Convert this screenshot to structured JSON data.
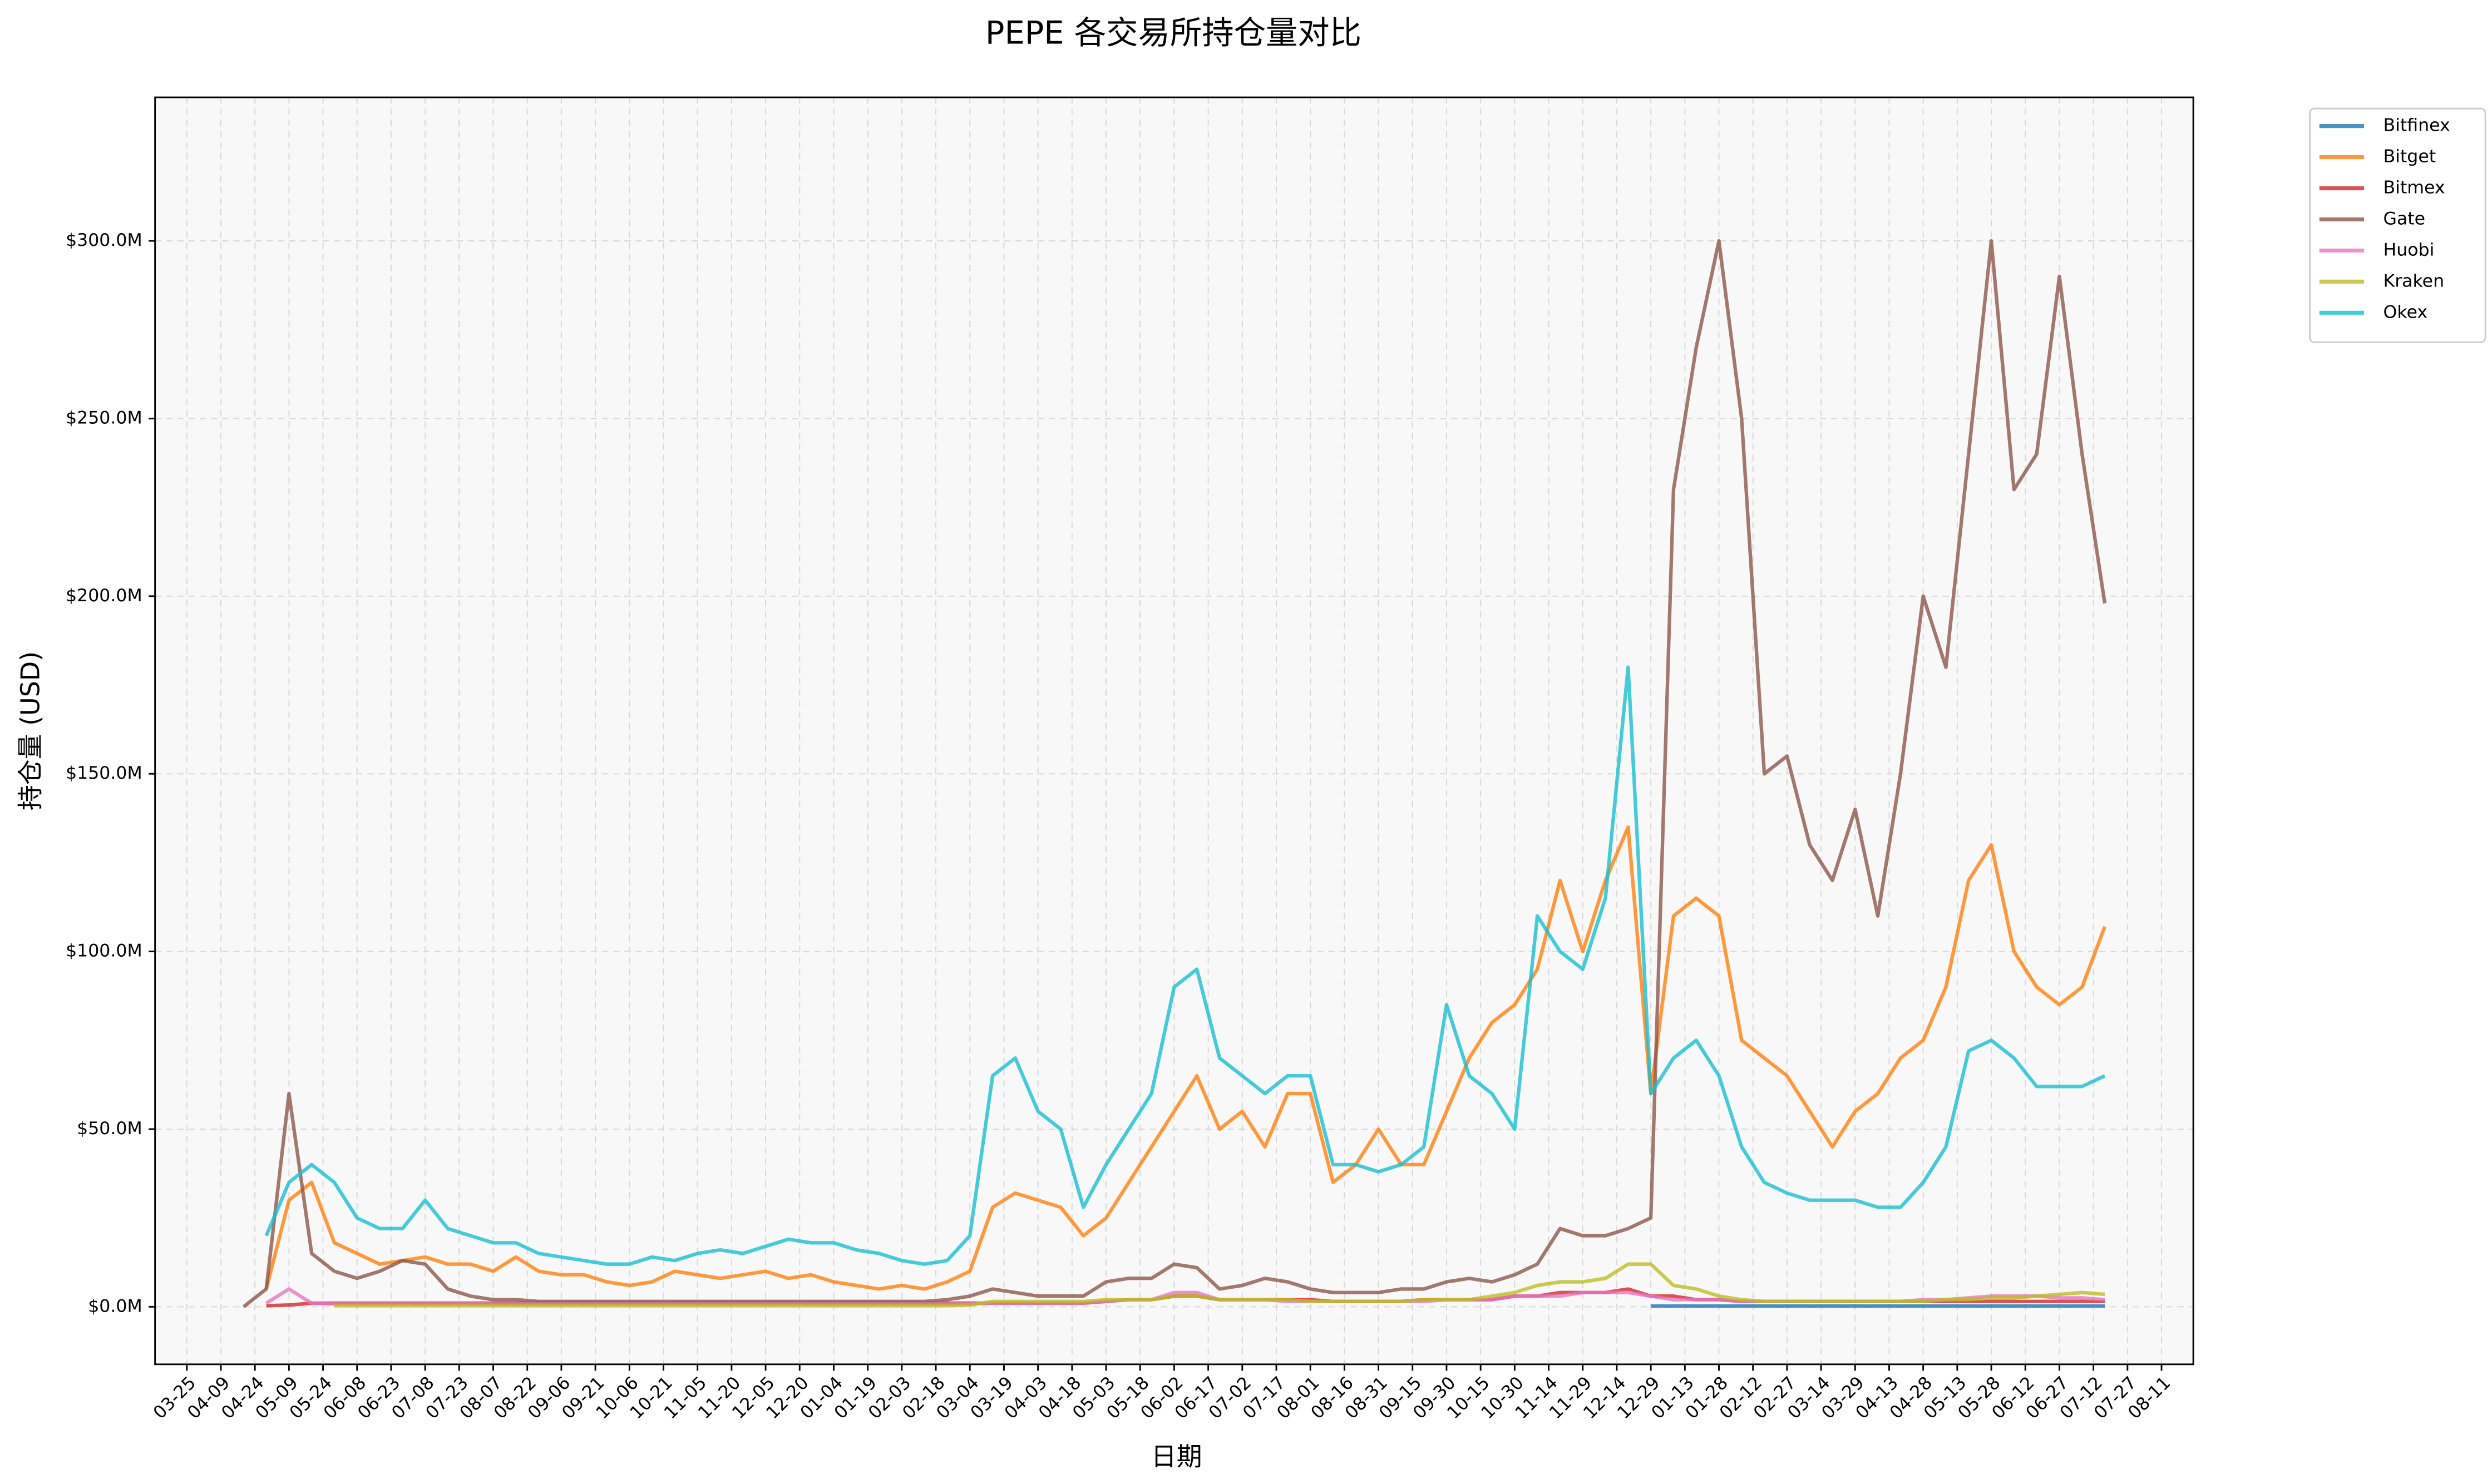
{
  "chart_data": {
    "type": "line",
    "title": "PEPE 各交易所持仓量对比",
    "xlabel": "日期",
    "ylabel": "持仓量 (USD)",
    "grid": true,
    "legend": "outside upper right",
    "x": [
      25,
      35,
      45,
      55,
      65,
      75,
      85,
      95,
      105,
      115,
      125,
      135,
      145,
      155,
      165,
      175,
      185,
      195,
      205,
      215,
      225,
      235,
      245,
      255,
      265,
      275,
      285,
      295,
      305,
      315,
      325,
      335,
      345,
      355,
      365,
      375,
      385,
      395,
      405,
      415,
      425,
      435,
      445,
      455,
      465,
      475,
      485,
      495,
      505,
      515,
      525,
      535,
      545,
      555,
      565,
      575,
      585,
      595,
      605,
      615,
      625,
      635,
      645,
      655,
      665,
      675,
      685,
      695,
      705,
      715,
      725,
      735,
      745,
      755,
      765,
      775,
      785,
      795,
      805,
      815,
      825,
      835,
      845
    ],
    "xlim": [
      -14,
      884
    ],
    "xticks": [
      {
        "value": 0,
        "label": "03-25"
      },
      {
        "value": 15,
        "label": "04-09"
      },
      {
        "value": 30,
        "label": "04-24"
      },
      {
        "value": 45,
        "label": "05-09"
      },
      {
        "value": 60,
        "label": "05-24"
      },
      {
        "value": 75,
        "label": "06-08"
      },
      {
        "value": 90,
        "label": "06-23"
      },
      {
        "value": 105,
        "label": "07-08"
      },
      {
        "value": 120,
        "label": "07-23"
      },
      {
        "value": 135,
        "label": "08-07"
      },
      {
        "value": 150,
        "label": "08-22"
      },
      {
        "value": 165,
        "label": "09-06"
      },
      {
        "value": 180,
        "label": "09-21"
      },
      {
        "value": 195,
        "label": "10-06"
      },
      {
        "value": 210,
        "label": "10-21"
      },
      {
        "value": 225,
        "label": "11-05"
      },
      {
        "value": 240,
        "label": "11-20"
      },
      {
        "value": 255,
        "label": "12-05"
      },
      {
        "value": 270,
        "label": "12-20"
      },
      {
        "value": 285,
        "label": "01-04"
      },
      {
        "value": 300,
        "label": "01-19"
      },
      {
        "value": 315,
        "label": "02-03"
      },
      {
        "value": 330,
        "label": "02-18"
      },
      {
        "value": 345,
        "label": "03-04"
      },
      {
        "value": 360,
        "label": "03-19"
      },
      {
        "value": 375,
        "label": "04-03"
      },
      {
        "value": 390,
        "label": "04-18"
      },
      {
        "value": 405,
        "label": "05-03"
      },
      {
        "value": 420,
        "label": "05-18"
      },
      {
        "value": 435,
        "label": "06-02"
      },
      {
        "value": 450,
        "label": "06-17"
      },
      {
        "value": 465,
        "label": "07-02"
      },
      {
        "value": 480,
        "label": "07-17"
      },
      {
        "value": 495,
        "label": "08-01"
      },
      {
        "value": 510,
        "label": "08-16"
      },
      {
        "value": 525,
        "label": "08-31"
      },
      {
        "value": 540,
        "label": "09-15"
      },
      {
        "value": 555,
        "label": "09-30"
      },
      {
        "value": 570,
        "label": "10-15"
      },
      {
        "value": 585,
        "label": "10-30"
      },
      {
        "value": 600,
        "label": "11-14"
      },
      {
        "value": 615,
        "label": "11-29"
      },
      {
        "value": 630,
        "label": "12-14"
      },
      {
        "value": 645,
        "label": "12-29"
      },
      {
        "value": 660,
        "label": "01-13"
      },
      {
        "value": 675,
        "label": "01-28"
      },
      {
        "value": 690,
        "label": "02-12"
      },
      {
        "value": 705,
        "label": "02-27"
      },
      {
        "value": 720,
        "label": "03-14"
      },
      {
        "value": 735,
        "label": "03-29"
      },
      {
        "value": 750,
        "label": "04-13"
      },
      {
        "value": 765,
        "label": "04-28"
      },
      {
        "value": 780,
        "label": "05-13"
      },
      {
        "value": 795,
        "label": "05-28"
      },
      {
        "value": 810,
        "label": "06-12"
      },
      {
        "value": 825,
        "label": "06-27"
      },
      {
        "value": 840,
        "label": "07-12"
      },
      {
        "value": 855,
        "label": "07-27"
      },
      {
        "value": 870,
        "label": "08-11"
      }
    ],
    "ylim": [
      -16.2,
      340.4
    ],
    "yticks": [
      {
        "value": 0,
        "label": "$0.0M"
      },
      {
        "value": 50,
        "label": "$50.0M"
      },
      {
        "value": 100,
        "label": "$100.0M"
      },
      {
        "value": 150,
        "label": "$150.0M"
      },
      {
        "value": 200,
        "label": "$200.0M"
      },
      {
        "value": 250,
        "label": "$250.0M"
      },
      {
        "value": 300,
        "label": "$300.0M"
      }
    ],
    "series": [
      {
        "name": "Bitfinex",
        "color": "#1f77b4",
        "values": [
          null,
          null,
          null,
          null,
          null,
          null,
          null,
          null,
          null,
          null,
          null,
          null,
          null,
          null,
          null,
          null,
          null,
          null,
          null,
          null,
          null,
          null,
          null,
          null,
          null,
          null,
          null,
          null,
          null,
          null,
          null,
          null,
          null,
          null,
          null,
          null,
          null,
          null,
          null,
          null,
          null,
          null,
          null,
          null,
          null,
          null,
          null,
          null,
          null,
          null,
          null,
          null,
          null,
          null,
          null,
          null,
          null,
          null,
          null,
          null,
          null,
          null,
          0.2,
          0.2,
          0.2,
          0.2,
          0.2,
          0.2,
          0.2,
          0.2,
          0.2,
          0.2,
          0.2,
          0.2,
          0.2,
          0.2,
          0.2,
          0.2,
          0.2,
          0.2,
          0.2,
          0.2,
          0.2
        ]
      },
      {
        "name": "Bitget",
        "color": "#ff7f0e",
        "values": [
          null,
          5,
          30,
          35,
          18,
          15,
          12,
          13,
          14,
          12,
          12,
          10,
          14,
          10,
          9,
          9,
          7,
          6,
          7,
          10,
          9,
          8,
          9,
          10,
          8,
          9,
          7,
          6,
          5,
          6,
          5,
          7,
          10,
          28,
          32,
          30,
          28,
          20,
          25,
          35,
          45,
          55,
          65,
          50,
          55,
          45,
          60,
          60,
          35,
          40,
          50,
          40,
          40,
          55,
          70,
          80,
          85,
          95,
          120,
          100,
          120,
          135,
          60,
          110,
          115,
          110,
          75,
          70,
          65,
          55,
          45,
          55,
          60,
          70,
          75,
          90,
          120,
          130,
          100,
          90,
          85,
          90,
          107
        ]
      },
      {
        "name": "Bitmex",
        "color": "#d62728",
        "values": [
          null,
          0.3,
          0.5,
          1,
          1,
          1,
          1,
          1,
          1,
          1,
          1,
          1,
          1,
          1,
          1,
          1,
          1,
          1,
          1,
          1,
          1,
          1,
          1,
          1,
          1,
          1,
          1,
          1,
          1,
          1,
          1,
          1,
          1,
          1,
          1,
          1,
          1,
          1,
          1.5,
          2,
          2,
          3,
          3,
          2,
          2,
          2,
          2,
          2,
          1.5,
          1.5,
          1.5,
          1.5,
          2,
          2,
          2,
          2,
          3,
          3,
          4,
          4,
          4,
          5,
          3,
          3,
          2,
          2,
          1.5,
          1.5,
          1.5,
          1.5,
          1.5,
          1.5,
          1.5,
          1.5,
          1.5,
          1.5,
          1.5,
          1.5,
          1.5,
          1.5,
          1.5,
          1.5,
          1.5
        ]
      },
      {
        "name": "Gate",
        "color": "#8c564b",
        "values": [
          0,
          5,
          60,
          15,
          10,
          8,
          10,
          13,
          12,
          5,
          3,
          2,
          2,
          1.5,
          1.5,
          1.5,
          1.5,
          1.5,
          1.5,
          1.5,
          1.5,
          1.5,
          1.5,
          1.5,
          1.5,
          1.5,
          1.5,
          1.5,
          1.5,
          1.5,
          1.5,
          2,
          3,
          5,
          4,
          3,
          3,
          3,
          7,
          8,
          8,
          12,
          11,
          5,
          6,
          8,
          7,
          5,
          4,
          4,
          4,
          5,
          5,
          7,
          8,
          7,
          9,
          12,
          22,
          20,
          20,
          22,
          25,
          230,
          270,
          300,
          250,
          150,
          155,
          130,
          120,
          140,
          110,
          150,
          200,
          180,
          240,
          300,
          230,
          240,
          290,
          240,
          198
        ]
      },
      {
        "name": "Huobi",
        "color": "#e377c2",
        "values": [
          null,
          1,
          5,
          1,
          0.8,
          0.8,
          0.8,
          0.8,
          0.8,
          0.8,
          0.8,
          0.8,
          0.8,
          0.8,
          0.8,
          0.8,
          0.8,
          0.8,
          0.8,
          0.8,
          0.8,
          0.8,
          0.8,
          0.8,
          0.8,
          0.8,
          0.8,
          0.8,
          0.8,
          0.8,
          0.8,
          0.8,
          0.8,
          1,
          1,
          1,
          1,
          1,
          1.5,
          2,
          2,
          4,
          4,
          2,
          2,
          2,
          1.5,
          1.5,
          1.5,
          1.5,
          1.5,
          1.5,
          1.5,
          2,
          2,
          2,
          3,
          3,
          3,
          4,
          4,
          4,
          3,
          2,
          2,
          2,
          1.5,
          1.5,
          1.5,
          1.5,
          1.5,
          1.5,
          1.5,
          1.5,
          2,
          2,
          2.5,
          3,
          3,
          3,
          2.5,
          2.5,
          2
        ]
      },
      {
        "name": "Kraken",
        "color": "#bcbd22",
        "values": [
          null,
          null,
          null,
          null,
          0.3,
          0.3,
          0.3,
          0.3,
          0.3,
          0.3,
          0.3,
          0.3,
          0.3,
          0.3,
          0.3,
          0.3,
          0.3,
          0.3,
          0.3,
          0.3,
          0.3,
          0.3,
          0.3,
          0.3,
          0.3,
          0.3,
          0.3,
          0.3,
          0.3,
          0.3,
          0.3,
          0.3,
          0.5,
          1.5,
          1.5,
          1.5,
          1.5,
          1.5,
          2,
          2,
          2,
          3,
          3,
          2,
          2,
          2,
          2,
          1.5,
          1.5,
          1.5,
          1.5,
          1.5,
          2,
          2,
          2,
          3,
          4,
          6,
          7,
          7,
          8,
          12,
          12,
          6,
          5,
          3,
          2,
          1.5,
          1.5,
          1.5,
          1.5,
          1.5,
          1.5,
          1.5,
          1.5,
          2,
          2,
          2.5,
          2.5,
          3,
          3.5,
          4,
          3.5
        ]
      },
      {
        "name": "Okex",
        "color": "#17becf",
        "values": [
          null,
          20,
          35,
          40,
          35,
          25,
          22,
          22,
          30,
          22,
          20,
          18,
          18,
          15,
          14,
          13,
          12,
          12,
          14,
          13,
          15,
          16,
          15,
          17,
          19,
          18,
          18,
          16,
          15,
          13,
          12,
          13,
          20,
          65,
          70,
          55,
          50,
          28,
          40,
          50,
          60,
          90,
          95,
          70,
          65,
          60,
          65,
          65,
          40,
          40,
          38,
          40,
          45,
          85,
          65,
          60,
          50,
          110,
          100,
          95,
          115,
          180,
          60,
          70,
          75,
          65,
          45,
          35,
          32,
          30,
          30,
          30,
          28,
          28,
          35,
          45,
          72,
          75,
          70,
          62,
          62,
          62,
          65
        ]
      }
    ]
  }
}
